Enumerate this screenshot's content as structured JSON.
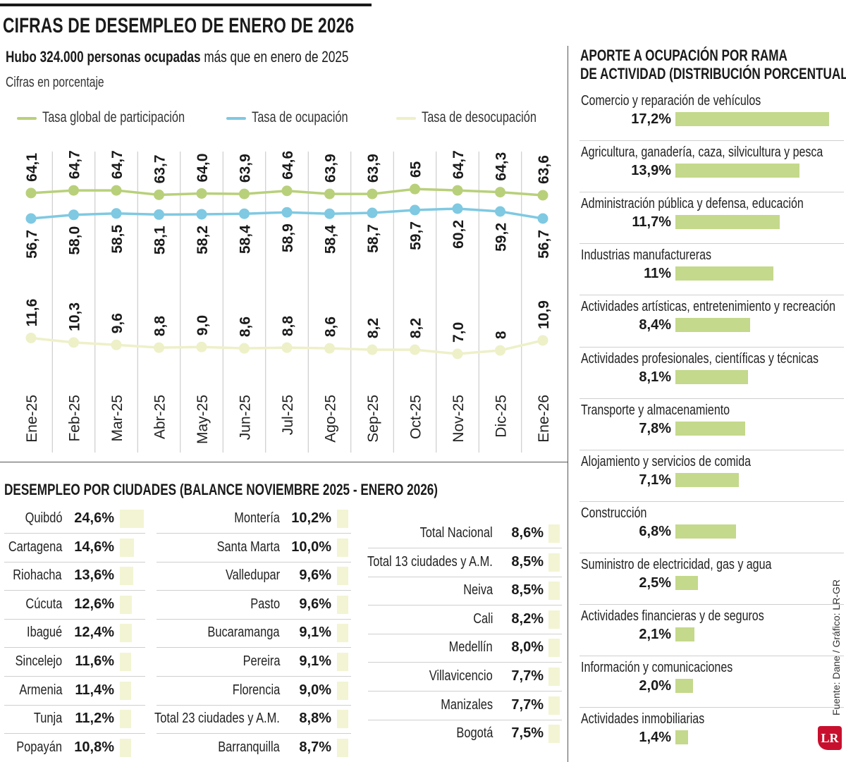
{
  "header": {
    "title": "CIFRAS DE DESEMPLEO DE ENERO DE 2026",
    "subtitle_bold": "Hubo 324.000 personas ocupadas",
    "subtitle_rest": " más que en enero de 2025",
    "unit": "Cifras en porcentaje"
  },
  "legend": [
    {
      "label": "Tasa global de participación",
      "color": "#b9d07a"
    },
    {
      "label": "Tasa de ocupación",
      "color": "#7fc9e2"
    },
    {
      "label": "Tasa de desocupación",
      "color": "#eef0c8"
    }
  ],
  "sectors_title_1": "APORTE A OCUPACIÓN POR RAMA",
  "sectors_title_2": "DE ACTIVIDAD (DISTRIBUCIÓN PORCENTUAL)",
  "cities_title": "DESEMPLEO POR CIUDADES (BALANCE NOVIEMBRE 2025 - ENERO 2026)",
  "source": "Fuente: Dane / Gráfico: LR-GR",
  "logo": "LR",
  "chart_data": [
    {
      "type": "line",
      "categories": [
        "Ene-25",
        "Feb-25",
        "Mar-25",
        "Abr-25",
        "May-25",
        "Jun-25",
        "Jul-25",
        "Ago-25",
        "Sep-25",
        "Oct-25",
        "Nov-25",
        "Dic-25",
        "Ene-26"
      ],
      "series": [
        {
          "name": "Tasa global de participación",
          "values": [
            64.1,
            64.7,
            64.7,
            63.7,
            64.0,
            63.9,
            64.6,
            63.9,
            63.9,
            65,
            64.7,
            64.3,
            63.6
          ],
          "labels": [
            "64,1",
            "64,7",
            "64,7",
            "63,7",
            "64,0",
            "63,9",
            "64,6",
            "63,9",
            "63,9",
            "65",
            "64,7",
            "64,3",
            "63,6"
          ]
        },
        {
          "name": "Tasa de ocupación",
          "values": [
            56.7,
            58.0,
            58.5,
            58.1,
            58.2,
            58.4,
            58.9,
            58.4,
            58.7,
            59.7,
            60.2,
            59.2,
            56.7
          ],
          "labels": [
            "56,7",
            "58,0",
            "58,5",
            "58,1",
            "58,2",
            "58,4",
            "58,9",
            "58,4",
            "58,7",
            "59,7",
            "60,2",
            "59,2",
            "56,7"
          ]
        },
        {
          "name": "Tasa de desocupación",
          "values": [
            11.6,
            10.3,
            9.6,
            8.8,
            9.0,
            8.6,
            8.8,
            8.6,
            8.2,
            8.2,
            7.0,
            8,
            10.9
          ],
          "labels": [
            "11,6",
            "10,3",
            "9,6",
            "8,8",
            "9,0",
            "8,6",
            "8,8",
            "8,6",
            "8,2",
            "8,2",
            "7,0",
            "8",
            "10,9"
          ]
        }
      ],
      "title": "CIFRAS DE DESEMPLEO DE ENERO DE 2026",
      "ylabel": "Cifras en porcentaje"
    },
    {
      "type": "bar",
      "title": "APORTE A OCUPACIÓN POR RAMA DE ACTIVIDAD (DISTRIBUCIÓN PORCENTUAL)",
      "categories": [
        "Comercio y reparación de vehículos",
        "Agricultura, ganadería, caza, silvicultura y pesca",
        "Administración pública y defensa, educación",
        "Industrias manufactureras",
        "Actividades artísticas, entretenimiento y recreación",
        "Actividades profesionales, científicas y técnicas",
        "Transporte y almacenamiento",
        "Alojamiento y servicios de comida",
        "Construcción",
        "Suministro de electricidad, gas y agua",
        "Actividades financieras y de seguros",
        "Información y comunicaciones",
        "Actividades inmobiliarias"
      ],
      "values": [
        17.2,
        13.9,
        11.7,
        11,
        8.4,
        8.1,
        7.8,
        7.1,
        6.8,
        2.5,
        2.1,
        2.0,
        1.4
      ],
      "labels": [
        "17,2%",
        "13,9%",
        "11,7%",
        "11%",
        "8,4%",
        "8,1%",
        "7,8%",
        "7,1%",
        "6,8%",
        "2,5%",
        "2,1%",
        "2,0%",
        "1,4%"
      ]
    },
    {
      "type": "bar",
      "title": "DESEMPLEO POR CIUDADES (BALANCE NOVIEMBRE 2025 - ENERO 2026)",
      "columns": [
        [
          {
            "name": "Quibdó",
            "value": 24.6,
            "label": "24,6%"
          },
          {
            "name": "Cartagena",
            "value": 14.6,
            "label": "14,6%"
          },
          {
            "name": "Riohacha",
            "value": 13.6,
            "label": "13,6%"
          },
          {
            "name": "Cúcuta",
            "value": 12.6,
            "label": "12,6%"
          },
          {
            "name": "Ibagué",
            "value": 12.4,
            "label": "12,4%"
          },
          {
            "name": "Sincelejo",
            "value": 11.6,
            "label": "11,6%"
          },
          {
            "name": "Armenia",
            "value": 11.4,
            "label": "11,4%"
          },
          {
            "name": "Tunja",
            "value": 11.2,
            "label": "11,2%"
          },
          {
            "name": "Popayán",
            "value": 10.8,
            "label": "10,8%"
          }
        ],
        [
          {
            "name": "Montería",
            "value": 10.2,
            "label": "10,2%"
          },
          {
            "name": "Santa Marta",
            "value": 10.0,
            "label": "10,0%"
          },
          {
            "name": "Valledupar",
            "value": 9.6,
            "label": "9,6%"
          },
          {
            "name": "Pasto",
            "value": 9.6,
            "label": "9,6%"
          },
          {
            "name": "Bucaramanga",
            "value": 9.1,
            "label": "9,1%"
          },
          {
            "name": "Pereira",
            "value": 9.1,
            "label": "9,1%"
          },
          {
            "name": "Florencia",
            "value": 9.0,
            "label": "9,0%"
          },
          {
            "name": "Total 23 ciudades y A.M.",
            "value": 8.8,
            "label": "8,8%"
          },
          {
            "name": "Barranquilla",
            "value": 8.7,
            "label": "8,7%"
          }
        ],
        [
          {
            "name": "Total Nacional",
            "value": 8.6,
            "label": "8,6%"
          },
          {
            "name": "Total 13 ciudades y A.M.",
            "value": 8.5,
            "label": "8,5%"
          },
          {
            "name": "Neiva",
            "value": 8.5,
            "label": "8,5%"
          },
          {
            "name": "Cali",
            "value": 8.2,
            "label": "8,2%"
          },
          {
            "name": "Medellín",
            "value": 8.0,
            "label": "8,0%"
          },
          {
            "name": "Villavicencio",
            "value": 7.7,
            "label": "7,7%"
          },
          {
            "name": "Manizales",
            "value": 7.7,
            "label": "7,7%"
          },
          {
            "name": "Bogotá",
            "value": 7.5,
            "label": "7,5%"
          }
        ]
      ]
    }
  ]
}
